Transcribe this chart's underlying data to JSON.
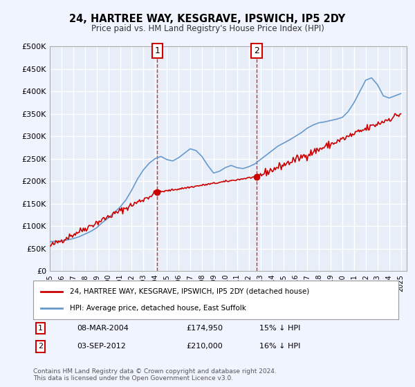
{
  "title": "24, HARTREE WAY, KESGRAVE, IPSWICH, IP5 2DY",
  "subtitle": "Price paid vs. HM Land Registry's House Price Index (HPI)",
  "background_color": "#f0f4ff",
  "plot_bg_color": "#e8eef8",
  "grid_color": "#ffffff",
  "hpi_color": "#6699cc",
  "price_color": "#cc0000",
  "marker1_date": "08-MAR-2004",
  "marker1_price": 174950,
  "marker1_label": "15% ↓ HPI",
  "marker1_x": 2004.18,
  "marker2_date": "03-SEP-2012",
  "marker2_price": 210000,
  "marker2_label": "16% ↓ HPI",
  "marker2_x": 2012.67,
  "legend_label_price": "24, HARTREE WAY, KESGRAVE, IPSWICH, IP5 2DY (detached house)",
  "legend_label_hpi": "HPI: Average price, detached house, East Suffolk",
  "footer1": "Contains HM Land Registry data © Crown copyright and database right 2024.",
  "footer2": "This data is licensed under the Open Government Licence v3.0.",
  "xmin": 1995,
  "xmax": 2025.5,
  "ymin": 0,
  "ymax": 500000,
  "yticks": [
    0,
    50000,
    100000,
    150000,
    200000,
    250000,
    300000,
    350000,
    400000,
    450000,
    500000
  ],
  "ytick_labels": [
    "£0",
    "£50K",
    "£100K",
    "£150K",
    "£200K",
    "£250K",
    "£300K",
    "£350K",
    "£400K",
    "£450K",
    "£500K"
  ],
  "hpi_data": {
    "x": [
      1995,
      1995.5,
      1996,
      1996.5,
      1997,
      1997.5,
      1998,
      1998.5,
      1999,
      1999.5,
      2000,
      2000.5,
      2001,
      2001.5,
      2002,
      2002.5,
      2003,
      2003.5,
      2004,
      2004.5,
      2005,
      2005.5,
      2006,
      2006.5,
      2007,
      2007.5,
      2008,
      2008.5,
      2009,
      2009.5,
      2010,
      2010.5,
      2011,
      2011.5,
      2012,
      2012.5,
      2013,
      2013.5,
      2014,
      2014.5,
      2015,
      2015.5,
      2016,
      2016.5,
      2017,
      2017.5,
      2018,
      2018.5,
      2019,
      2019.5,
      2020,
      2020.5,
      2021,
      2021.5,
      2022,
      2022.5,
      2023,
      2023.5,
      2024,
      2024.5,
      2025
    ],
    "y": [
      65000,
      66000,
      67000,
      69000,
      72000,
      76000,
      82000,
      88000,
      96000,
      108000,
      118000,
      130000,
      142000,
      158000,
      180000,
      205000,
      225000,
      240000,
      250000,
      255000,
      248000,
      245000,
      252000,
      262000,
      272000,
      268000,
      255000,
      235000,
      218000,
      222000,
      230000,
      235000,
      230000,
      228000,
      232000,
      238000,
      248000,
      258000,
      268000,
      278000,
      285000,
      292000,
      300000,
      308000,
      318000,
      325000,
      330000,
      332000,
      335000,
      338000,
      342000,
      355000,
      375000,
      400000,
      425000,
      430000,
      415000,
      390000,
      385000,
      390000,
      395000
    ]
  },
  "price_data": {
    "x": [
      1995,
      2004.18,
      2012.67,
      2025
    ],
    "y": [
      55000,
      174950,
      210000,
      350000
    ]
  }
}
